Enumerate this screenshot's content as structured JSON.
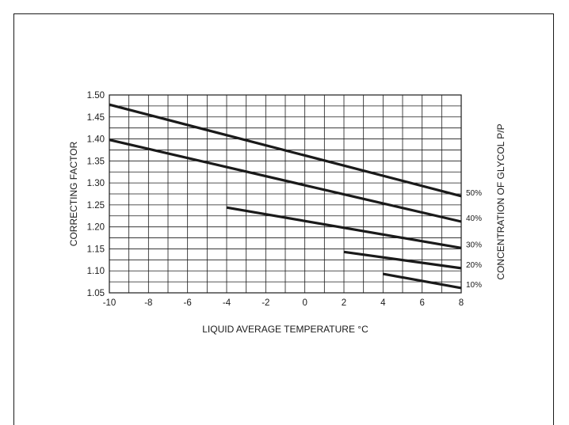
{
  "chart_data": {
    "type": "line",
    "title": "",
    "xlabel": "LIQUID AVERAGE TEMPERATURE °C",
    "ylabel": "CORRECTING FACTOR",
    "y2label": "CONCENTRATION OF GLYCOL P/P",
    "xlim": [
      -10,
      8
    ],
    "ylim": [
      1.05,
      1.5
    ],
    "x_ticks": [
      "-10",
      "-8",
      "-6",
      "-4",
      "-2",
      "0",
      "2",
      "4",
      "6",
      "8"
    ],
    "y_ticks": [
      "1.05",
      "1.10",
      "1.15",
      "1.20",
      "1.25",
      "1.30",
      "1.35",
      "1.40",
      "1.45",
      "1.50"
    ],
    "grid": true,
    "series": [
      {
        "name": "50%",
        "x": [
          -10,
          8
        ],
        "y": [
          1.478,
          1.27
        ]
      },
      {
        "name": "40%",
        "x": [
          -10,
          8
        ],
        "y": [
          1.398,
          1.212
        ]
      },
      {
        "name": "30%",
        "x": [
          -4,
          8
        ],
        "y": [
          1.244,
          1.152
        ]
      },
      {
        "name": "20%",
        "x": [
          2,
          8
        ],
        "y": [
          1.143,
          1.106
        ]
      },
      {
        "name": "10%",
        "x": [
          4,
          8
        ],
        "y": [
          1.093,
          1.061
        ]
      }
    ]
  }
}
